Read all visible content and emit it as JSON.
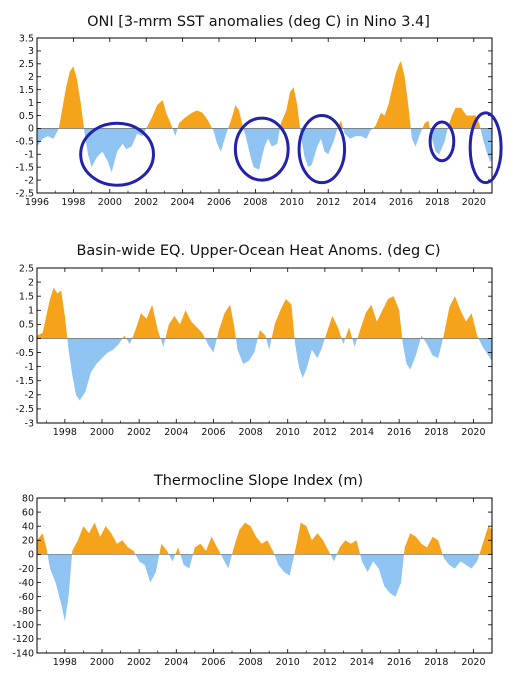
{
  "colors": {
    "positive": "#f5a31a",
    "negative": "#8ec3f2",
    "highlight": "#2222aa",
    "frame": "#000000"
  },
  "chart_data": [
    {
      "type": "area",
      "title": "ONI [3-mrm SST anomalies (deg C) in Nino 3.4]",
      "xlabel": "",
      "ylabel": "",
      "xlim": [
        1996,
        2021
      ],
      "ylim": [
        -2.5,
        3.5
      ],
      "x_ticks": [
        1996,
        1998,
        2000,
        2002,
        2004,
        2006,
        2008,
        2010,
        2012,
        2014,
        2016,
        2018,
        2020
      ],
      "x_tick_labels": [
        "1996",
        "1998",
        "2000",
        "2002",
        "2004",
        "2006",
        "2008",
        "2010",
        "2012",
        "2014",
        "2016",
        "2018",
        "2020"
      ],
      "y_ticks": [
        -2.5,
        -2,
        -1.5,
        -1,
        -0.5,
        0,
        0.5,
        1,
        1.5,
        2,
        2.5,
        3,
        3.5
      ],
      "y_tick_labels": [
        "-2.5",
        "-2",
        "-1.5",
        "-1",
        "-0.5",
        "0",
        "0.5",
        "1",
        "1.5",
        "2",
        "2.5",
        "3",
        "3.5"
      ],
      "grid": false,
      "highlights": [
        {
          "x": [
            1998.4,
            2002.4
          ],
          "y": [
            -2.2,
            0.2
          ]
        },
        {
          "x": [
            2006.9,
            2009.8
          ],
          "y": [
            -2.0,
            0.4
          ]
        },
        {
          "x": [
            2010.4,
            2012.9
          ],
          "y": [
            -2.1,
            0.5
          ]
        },
        {
          "x": [
            2017.6,
            2018.9
          ],
          "y": [
            -1.25,
            0.25
          ]
        },
        {
          "x": [
            2019.8,
            2021.5
          ],
          "y": [
            -2.1,
            0.6
          ]
        }
      ],
      "points": [
        [
          1996.0,
          -0.7
        ],
        [
          1996.3,
          -0.4
        ],
        [
          1996.6,
          -0.3
        ],
        [
          1996.9,
          -0.4
        ],
        [
          1997.2,
          0.0
        ],
        [
          1997.4,
          0.8
        ],
        [
          1997.6,
          1.6
        ],
        [
          1997.8,
          2.2
        ],
        [
          1998.0,
          2.4
        ],
        [
          1998.2,
          1.9
        ],
        [
          1998.4,
          1.0
        ],
        [
          1998.6,
          -0.1
        ],
        [
          1998.8,
          -1.0
        ],
        [
          1999.0,
          -1.5
        ],
        [
          1999.3,
          -1.1
        ],
        [
          1999.6,
          -0.9
        ],
        [
          1999.9,
          -1.3
        ],
        [
          2000.1,
          -1.7
        ],
        [
          2000.4,
          -0.9
        ],
        [
          2000.7,
          -0.6
        ],
        [
          2000.9,
          -0.8
        ],
        [
          2001.2,
          -0.7
        ],
        [
          2001.5,
          -0.2
        ],
        [
          2001.8,
          -0.3
        ],
        [
          2002.0,
          0.0
        ],
        [
          2002.3,
          0.4
        ],
        [
          2002.6,
          0.9
        ],
        [
          2002.9,
          1.1
        ],
        [
          2003.1,
          0.6
        ],
        [
          2003.4,
          0.1
        ],
        [
          2003.6,
          -0.3
        ],
        [
          2003.8,
          0.2
        ],
        [
          2004.1,
          0.4
        ],
        [
          2004.5,
          0.6
        ],
        [
          2004.8,
          0.7
        ],
        [
          2005.1,
          0.6
        ],
        [
          2005.4,
          0.3
        ],
        [
          2005.7,
          -0.1
        ],
        [
          2005.9,
          -0.6
        ],
        [
          2006.1,
          -0.9
        ],
        [
          2006.4,
          -0.2
        ],
        [
          2006.7,
          0.4
        ],
        [
          2006.9,
          0.9
        ],
        [
          2007.1,
          0.7
        ],
        [
          2007.3,
          0.1
        ],
        [
          2007.5,
          -0.4
        ],
        [
          2007.7,
          -1.0
        ],
        [
          2007.9,
          -1.5
        ],
        [
          2008.2,
          -1.6
        ],
        [
          2008.5,
          -0.7
        ],
        [
          2008.7,
          -0.4
        ],
        [
          2008.9,
          -0.7
        ],
        [
          2009.2,
          -0.6
        ],
        [
          2009.4,
          0.2
        ],
        [
          2009.7,
          0.7
        ],
        [
          2009.9,
          1.4
        ],
        [
          2010.1,
          1.6
        ],
        [
          2010.3,
          0.9
        ],
        [
          2010.5,
          -0.3
        ],
        [
          2010.7,
          -1.1
        ],
        [
          2010.9,
          -1.5
        ],
        [
          2011.1,
          -1.4
        ],
        [
          2011.4,
          -0.7
        ],
        [
          2011.6,
          -0.4
        ],
        [
          2011.8,
          -0.9
        ],
        [
          2012.0,
          -1.0
        ],
        [
          2012.3,
          -0.5
        ],
        [
          2012.5,
          0.0
        ],
        [
          2012.7,
          0.3
        ],
        [
          2012.9,
          -0.2
        ],
        [
          2013.2,
          -0.4
        ],
        [
          2013.5,
          -0.3
        ],
        [
          2013.8,
          -0.3
        ],
        [
          2014.1,
          -0.4
        ],
        [
          2014.3,
          -0.1
        ],
        [
          2014.6,
          0.1
        ],
        [
          2014.9,
          0.6
        ],
        [
          2015.1,
          0.5
        ],
        [
          2015.3,
          0.9
        ],
        [
          2015.5,
          1.5
        ],
        [
          2015.7,
          2.1
        ],
        [
          2015.9,
          2.5
        ],
        [
          2016.0,
          2.6
        ],
        [
          2016.2,
          2.0
        ],
        [
          2016.4,
          0.9
        ],
        [
          2016.6,
          -0.4
        ],
        [
          2016.8,
          -0.7
        ],
        [
          2017.0,
          -0.3
        ],
        [
          2017.3,
          0.2
        ],
        [
          2017.5,
          0.3
        ],
        [
          2017.7,
          -0.4
        ],
        [
          2017.9,
          -0.9
        ],
        [
          2018.1,
          -1.0
        ],
        [
          2018.4,
          -0.5
        ],
        [
          2018.6,
          0.1
        ],
        [
          2018.8,
          0.5
        ],
        [
          2019.0,
          0.8
        ],
        [
          2019.3,
          0.8
        ],
        [
          2019.6,
          0.5
        ],
        [
          2019.9,
          0.5
        ],
        [
          2020.1,
          0.5
        ],
        [
          2020.3,
          0.2
        ],
        [
          2020.5,
          -0.4
        ],
        [
          2020.7,
          -0.9
        ],
        [
          2020.9,
          -1.3
        ],
        [
          2021.0,
          -1.2
        ]
      ]
    },
    {
      "type": "area",
      "title": "Basin-wide EQ. Upper-Ocean Heat Anoms. (deg C)",
      "xlabel": "",
      "ylabel": "",
      "xlim": [
        1996.5,
        2021
      ],
      "ylim": [
        -3,
        2.5
      ],
      "x_ticks": [
        1998,
        2000,
        2002,
        2004,
        2006,
        2008,
        2010,
        2012,
        2014,
        2016,
        2018,
        2020
      ],
      "x_tick_labels": [
        "1998",
        "2000",
        "2002",
        "2004",
        "2006",
        "2008",
        "2010",
        "2012",
        "2014",
        "2016",
        "2018",
        "2020"
      ],
      "y_ticks": [
        -3,
        -2.5,
        -2,
        -1.5,
        -1,
        -0.5,
        0,
        0.5,
        1,
        1.5,
        2,
        2.5
      ],
      "y_tick_labels": [
        "-3",
        "-2.5",
        "-2",
        "-1.5",
        "-1",
        "-0.5",
        "0",
        "0.5",
        "1",
        "1.5",
        "2",
        "2.5"
      ],
      "grid": false,
      "points": [
        [
          1996.5,
          0.1
        ],
        [
          1996.8,
          0.2
        ],
        [
          1997.0,
          0.8
        ],
        [
          1997.2,
          1.4
        ],
        [
          1997.4,
          1.8
        ],
        [
          1997.6,
          1.6
        ],
        [
          1997.8,
          1.7
        ],
        [
          1998.0,
          0.8
        ],
        [
          1998.2,
          -0.4
        ],
        [
          1998.4,
          -1.3
        ],
        [
          1998.6,
          -2.0
        ],
        [
          1998.8,
          -2.2
        ],
        [
          1999.1,
          -1.9
        ],
        [
          1999.4,
          -1.2
        ],
        [
          1999.7,
          -0.9
        ],
        [
          2000.0,
          -0.7
        ],
        [
          2000.3,
          -0.5
        ],
        [
          2000.6,
          -0.4
        ],
        [
          2000.9,
          -0.2
        ],
        [
          2001.2,
          0.1
        ],
        [
          2001.5,
          -0.2
        ],
        [
          2001.8,
          0.3
        ],
        [
          2002.1,
          0.9
        ],
        [
          2002.4,
          0.7
        ],
        [
          2002.7,
          1.2
        ],
        [
          2003.0,
          0.3
        ],
        [
          2003.3,
          -0.3
        ],
        [
          2003.6,
          0.5
        ],
        [
          2003.9,
          0.8
        ],
        [
          2004.2,
          0.5
        ],
        [
          2004.5,
          1.0
        ],
        [
          2004.8,
          0.6
        ],
        [
          2005.1,
          0.4
        ],
        [
          2005.4,
          0.2
        ],
        [
          2005.7,
          -0.2
        ],
        [
          2006.0,
          -0.5
        ],
        [
          2006.3,
          0.3
        ],
        [
          2006.6,
          0.9
        ],
        [
          2006.9,
          1.2
        ],
        [
          2007.1,
          0.5
        ],
        [
          2007.3,
          -0.4
        ],
        [
          2007.6,
          -0.9
        ],
        [
          2007.9,
          -0.8
        ],
        [
          2008.2,
          -0.5
        ],
        [
          2008.5,
          0.3
        ],
        [
          2008.8,
          0.1
        ],
        [
          2009.0,
          -0.4
        ],
        [
          2009.3,
          0.5
        ],
        [
          2009.6,
          1.0
        ],
        [
          2009.9,
          1.4
        ],
        [
          2010.2,
          1.2
        ],
        [
          2010.4,
          -0.2
        ],
        [
          2010.6,
          -1.0
        ],
        [
          2010.8,
          -1.4
        ],
        [
          2011.0,
          -1.1
        ],
        [
          2011.3,
          -0.4
        ],
        [
          2011.6,
          -0.7
        ],
        [
          2011.8,
          -0.4
        ],
        [
          2012.1,
          0.2
        ],
        [
          2012.4,
          0.8
        ],
        [
          2012.7,
          0.4
        ],
        [
          2013.0,
          -0.2
        ],
        [
          2013.3,
          0.4
        ],
        [
          2013.6,
          -0.3
        ],
        [
          2013.9,
          0.3
        ],
        [
          2014.2,
          0.9
        ],
        [
          2014.5,
          1.2
        ],
        [
          2014.8,
          0.6
        ],
        [
          2015.1,
          1.0
        ],
        [
          2015.4,
          1.4
        ],
        [
          2015.7,
          1.5
        ],
        [
          2016.0,
          1.0
        ],
        [
          2016.2,
          -0.2
        ],
        [
          2016.4,
          -0.9
        ],
        [
          2016.6,
          -1.1
        ],
        [
          2016.9,
          -0.6
        ],
        [
          2017.2,
          0.1
        ],
        [
          2017.5,
          -0.2
        ],
        [
          2017.8,
          -0.6
        ],
        [
          2018.1,
          -0.7
        ],
        [
          2018.4,
          0.1
        ],
        [
          2018.7,
          1.1
        ],
        [
          2019.0,
          1.5
        ],
        [
          2019.3,
          1.0
        ],
        [
          2019.6,
          0.6
        ],
        [
          2019.9,
          0.9
        ],
        [
          2020.2,
          0.1
        ],
        [
          2020.5,
          -0.3
        ],
        [
          2020.8,
          -0.6
        ],
        [
          2021.0,
          -0.8
        ]
      ]
    },
    {
      "type": "area",
      "title": "Thermocline Slope Index (m)",
      "xlabel": "",
      "ylabel": "",
      "xlim": [
        1996.5,
        2021
      ],
      "ylim": [
        -140,
        80
      ],
      "x_ticks": [
        1998,
        2000,
        2002,
        2004,
        2006,
        2008,
        2010,
        2012,
        2014,
        2016,
        2018,
        2020
      ],
      "x_tick_labels": [
        "1998",
        "2000",
        "2002",
        "2004",
        "2006",
        "2008",
        "2010",
        "2012",
        "2014",
        "2016",
        "2018",
        "2020"
      ],
      "y_ticks": [
        -140,
        -120,
        -100,
        -80,
        -60,
        -40,
        -20,
        0,
        20,
        40,
        60,
        80
      ],
      "y_tick_labels": [
        "-140",
        "-120",
        "-100",
        "-80",
        "-60",
        "-40",
        "-20",
        "0",
        "20",
        "40",
        "60",
        "80"
      ],
      "grid": false,
      "points": [
        [
          1996.5,
          20
        ],
        [
          1996.8,
          30
        ],
        [
          1997.0,
          10
        ],
        [
          1997.2,
          -20
        ],
        [
          1997.5,
          -40
        ],
        [
          1997.8,
          -70
        ],
        [
          1998.0,
          -95
        ],
        [
          1998.2,
          -60
        ],
        [
          1998.4,
          5
        ],
        [
          1998.7,
          20
        ],
        [
          1999.0,
          40
        ],
        [
          1999.3,
          30
        ],
        [
          1999.6,
          45
        ],
        [
          1999.9,
          25
        ],
        [
          2000.2,
          40
        ],
        [
          2000.5,
          30
        ],
        [
          2000.8,
          15
        ],
        [
          2001.1,
          20
        ],
        [
          2001.4,
          10
        ],
        [
          2001.7,
          5
        ],
        [
          2002.0,
          -10
        ],
        [
          2002.3,
          -15
        ],
        [
          2002.6,
          -40
        ],
        [
          2002.9,
          -25
        ],
        [
          2003.2,
          15
        ],
        [
          2003.5,
          5
        ],
        [
          2003.8,
          -10
        ],
        [
          2004.1,
          10
        ],
        [
          2004.4,
          -15
        ],
        [
          2004.7,
          -20
        ],
        [
          2005.0,
          10
        ],
        [
          2005.3,
          15
        ],
        [
          2005.6,
          5
        ],
        [
          2005.9,
          25
        ],
        [
          2006.2,
          10
        ],
        [
          2006.5,
          -5
        ],
        [
          2006.8,
          -20
        ],
        [
          2007.1,
          10
        ],
        [
          2007.4,
          35
        ],
        [
          2007.7,
          45
        ],
        [
          2008.0,
          40
        ],
        [
          2008.3,
          25
        ],
        [
          2008.6,
          15
        ],
        [
          2008.9,
          20
        ],
        [
          2009.2,
          5
        ],
        [
          2009.5,
          -15
        ],
        [
          2009.8,
          -25
        ],
        [
          2010.1,
          -30
        ],
        [
          2010.4,
          5
        ],
        [
          2010.7,
          45
        ],
        [
          2011.0,
          40
        ],
        [
          2011.3,
          20
        ],
        [
          2011.6,
          30
        ],
        [
          2011.9,
          20
        ],
        [
          2012.2,
          5
        ],
        [
          2012.5,
          -10
        ],
        [
          2012.8,
          10
        ],
        [
          2013.1,
          20
        ],
        [
          2013.4,
          15
        ],
        [
          2013.7,
          20
        ],
        [
          2014.0,
          -10
        ],
        [
          2014.3,
          -25
        ],
        [
          2014.6,
          -10
        ],
        [
          2014.9,
          -20
        ],
        [
          2015.2,
          -45
        ],
        [
          2015.5,
          -55
        ],
        [
          2015.8,
          -60
        ],
        [
          2016.1,
          -40
        ],
        [
          2016.3,
          10
        ],
        [
          2016.6,
          30
        ],
        [
          2016.9,
          25
        ],
        [
          2017.2,
          15
        ],
        [
          2017.5,
          10
        ],
        [
          2017.8,
          25
        ],
        [
          2018.1,
          20
        ],
        [
          2018.4,
          -5
        ],
        [
          2018.7,
          -15
        ],
        [
          2019.0,
          -20
        ],
        [
          2019.3,
          -10
        ],
        [
          2019.6,
          -15
        ],
        [
          2019.9,
          -20
        ],
        [
          2020.2,
          -10
        ],
        [
          2020.5,
          15
        ],
        [
          2020.8,
          40
        ],
        [
          2021.0,
          35
        ]
      ]
    }
  ]
}
